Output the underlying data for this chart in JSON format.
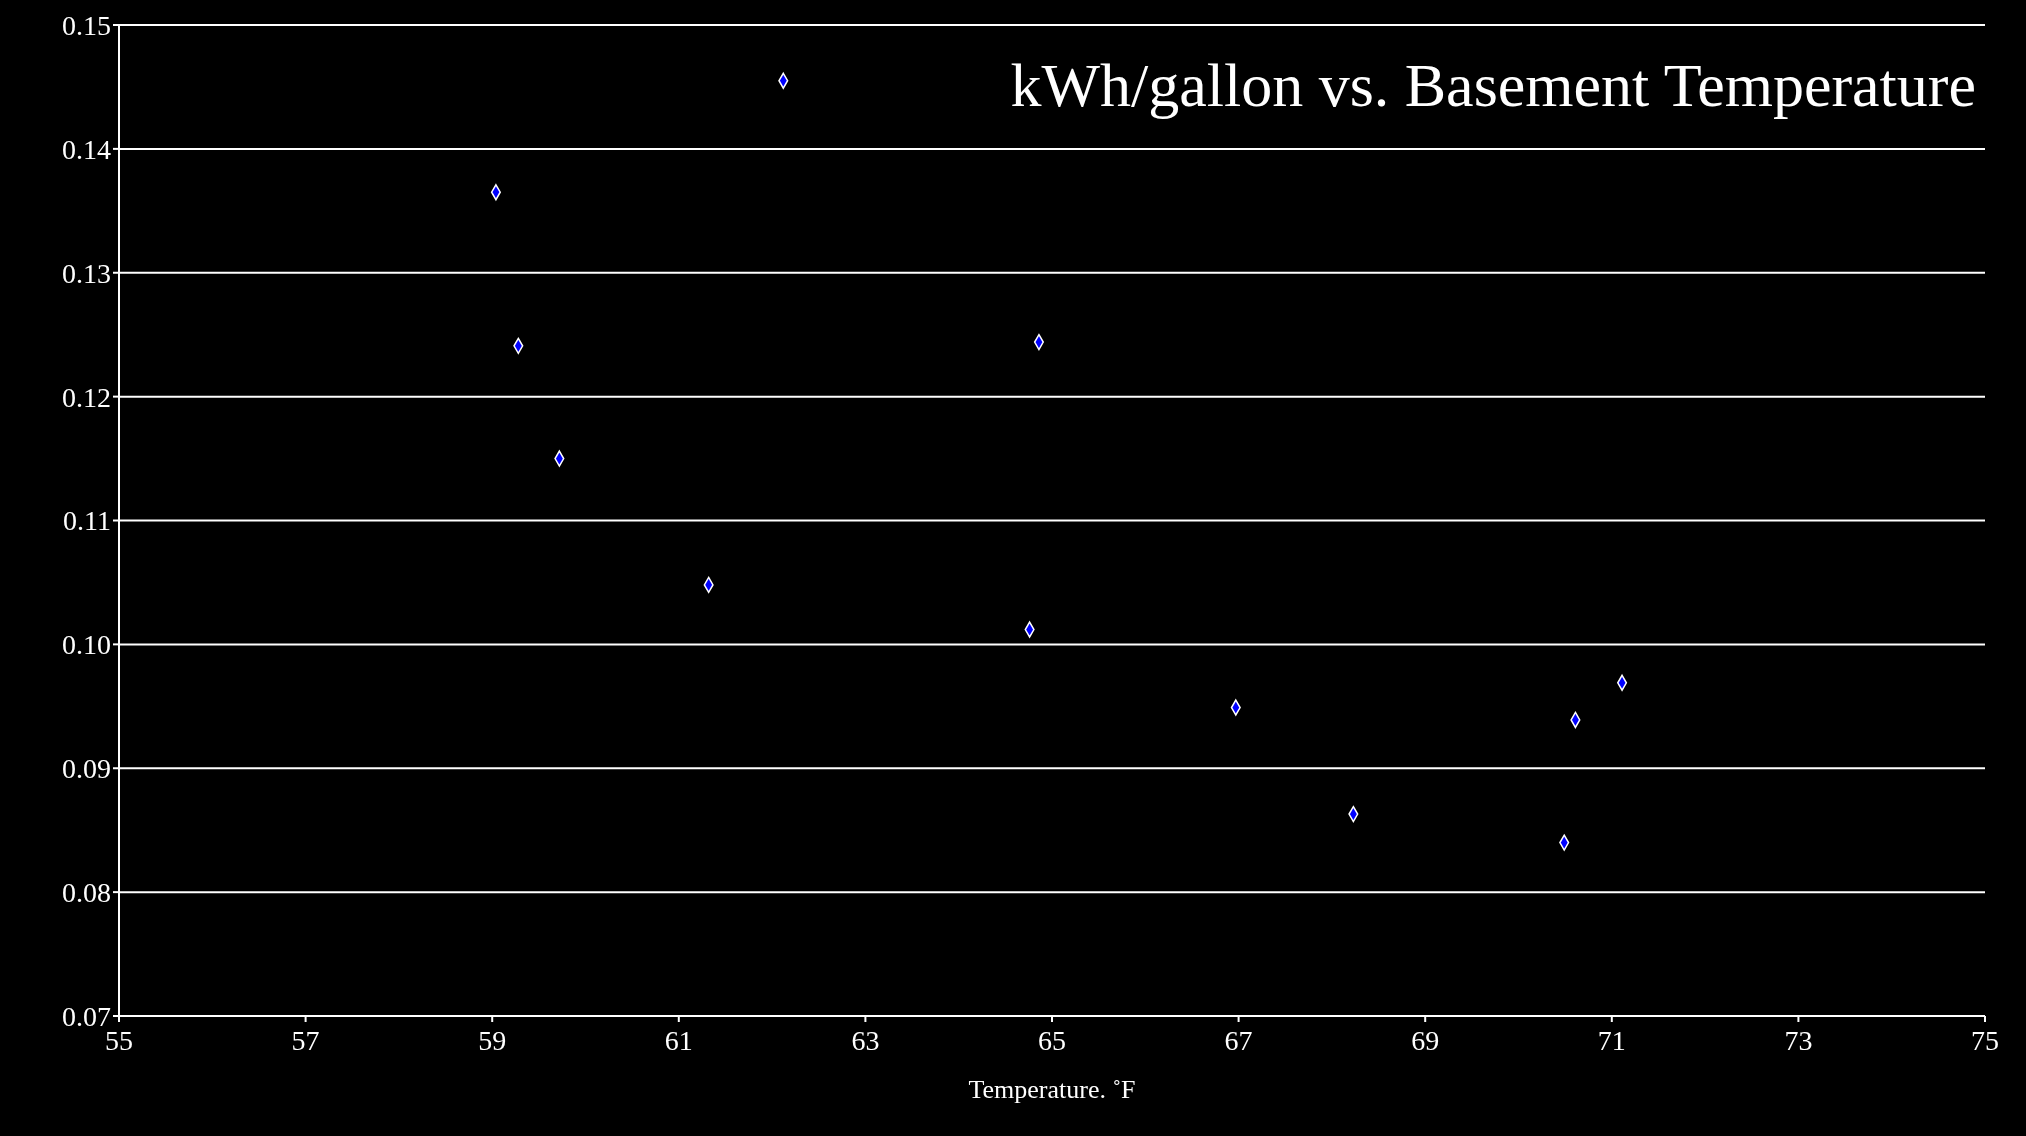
{
  "chart_data": {
    "type": "scatter",
    "title": "kWh/gallon vs. Basement Temperature",
    "xlabel": "Temperature. ˚F",
    "x": [
      59.04,
      59.28,
      59.72,
      61.32,
      62.12,
      64.86,
      64.76,
      66.97,
      68.23,
      70.49,
      70.61,
      71.11
    ],
    "values": [
      0.1365,
      0.1241,
      0.115,
      0.1048,
      0.1455,
      0.1244,
      0.1012,
      0.0949,
      0.0863,
      0.084,
      0.0939,
      0.0969
    ],
    "color": "#0000ff",
    "marker": "diamond",
    "xlim": [
      55,
      75
    ],
    "xticks": [
      55,
      57,
      59,
      61,
      63,
      65,
      67,
      69,
      71,
      73,
      75
    ],
    "ylim": [
      0.07,
      0.15
    ],
    "yticks": [
      0.07,
      0.08,
      0.09,
      {
        "value": 0.1,
        "label": "0.10"
      },
      0.11,
      0.12,
      0.13,
      0.14,
      0.15
    ],
    "grid": "y",
    "legend": false
  }
}
